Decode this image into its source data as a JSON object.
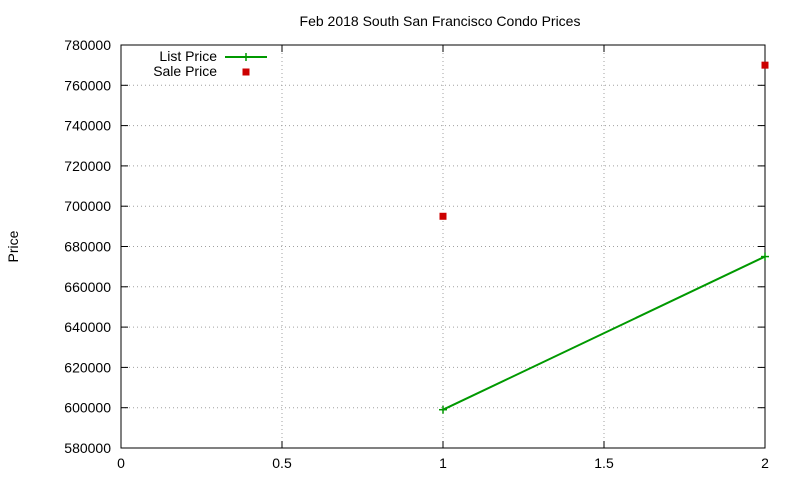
{
  "chart_data": {
    "type": "line",
    "title": "Feb 2018 South San Francisco Condo Prices",
    "xlabel": "",
    "ylabel": "Price",
    "xlim": [
      0,
      2
    ],
    "ylim": [
      580000,
      780000
    ],
    "x_ticks": [
      0,
      0.5,
      1,
      1.5,
      2
    ],
    "x_tick_labels": [
      "0",
      "0.5",
      "1",
      "1.5",
      "2"
    ],
    "y_ticks": [
      580000,
      600000,
      620000,
      640000,
      660000,
      680000,
      700000,
      720000,
      740000,
      760000,
      780000
    ],
    "y_tick_labels": [
      "580000",
      "600000",
      "620000",
      "640000",
      "660000",
      "680000",
      "700000",
      "720000",
      "740000",
      "760000",
      "780000"
    ],
    "grid": true,
    "legend_position": "top-left",
    "series": [
      {
        "name": "List Price",
        "kind": "line-points",
        "color": "#009900",
        "marker": "plus",
        "x": [
          1,
          2
        ],
        "y": [
          599000,
          675000
        ]
      },
      {
        "name": "Sale Price",
        "kind": "points",
        "color": "#cc0000",
        "marker": "square",
        "x": [
          1,
          2
        ],
        "y": [
          695000,
          770000
        ]
      }
    ]
  }
}
